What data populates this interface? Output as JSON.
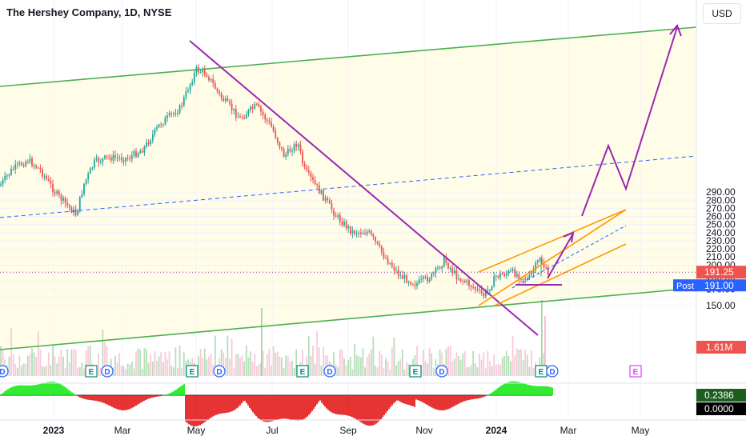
{
  "header": {
    "title": "The Hershey Company, 1D, NYSE",
    "currency": "USD"
  },
  "price_scale": {
    "ticks": [
      "290.00",
      "280.00",
      "270.00",
      "260.00",
      "250.00",
      "240.00",
      "230.00",
      "220.00",
      "210.00",
      "200.00",
      "180.00",
      "170.00",
      "150.00"
    ],
    "last_price_label": "191.25",
    "post_label": "Post",
    "post_price_label": "191.00",
    "volume_label": "1.61M",
    "osc_value_label": "0.2386",
    "osc_zero_label": "0.0000"
  },
  "time_axis": {
    "labels": [
      "2023",
      "Mar",
      "May",
      "Jul",
      "Sep",
      "Nov",
      "2024",
      "Mar",
      "May"
    ]
  },
  "event_markers": [
    {
      "letter": "D",
      "kind": "dividend"
    },
    {
      "letter": "E",
      "kind": "earnings"
    },
    {
      "letter": "D",
      "kind": "dividend"
    },
    {
      "letter": "E",
      "kind": "earnings"
    },
    {
      "letter": "D",
      "kind": "dividend"
    },
    {
      "letter": "E",
      "kind": "earnings"
    },
    {
      "letter": "D",
      "kind": "dividend"
    },
    {
      "letter": "E",
      "kind": "earnings"
    },
    {
      "letter": "D",
      "kind": "dividend"
    },
    {
      "letter": "E",
      "kind": "earnings"
    },
    {
      "letter": "D",
      "kind": "dividend"
    },
    {
      "letter": "E",
      "kind": "earnings-upcoming"
    }
  ],
  "colors": {
    "up": "#26a69a",
    "down": "#ef5350",
    "channel": "#4caf50",
    "trend": "#9c27b0",
    "orange": "#ff9800",
    "midline": "#2962ff",
    "channel_fill": "#fffde7",
    "post": "#2962ff",
    "osc_pos": "#00e600",
    "osc_neg": "#e00000"
  },
  "chart_data": {
    "type": "candlestick",
    "symbol": "HSY",
    "interval": "1D",
    "exchange": "NYSE",
    "ylim": [
      146,
      297
    ],
    "last_price": 191.25,
    "post_price": 191.0,
    "last_volume": "1.61M",
    "ohlc": [
      {
        "month": "2022-12",
        "close": 225
      },
      {
        "month": "2023-01",
        "close": 220
      },
      {
        "month": "2023-02",
        "close": 236
      },
      {
        "month": "2023-03",
        "close": 245
      },
      {
        "month": "2023-04",
        "close": 268
      },
      {
        "month": "2023-05",
        "close": 258
      },
      {
        "month": "2023-06",
        "close": 255
      },
      {
        "month": "2023-07",
        "close": 240
      },
      {
        "month": "2023-08",
        "close": 213
      },
      {
        "month": "2023-09",
        "close": 193
      },
      {
        "month": "2023-10",
        "close": 187
      },
      {
        "month": "2023-11",
        "close": 186
      },
      {
        "month": "2023-12",
        "close": 186
      },
      {
        "month": "2024-01",
        "close": 194
      },
      {
        "month": "2024-02",
        "close": 191
      }
    ],
    "oscillator": {
      "last": 0.2386,
      "zero": 0.0
    }
  }
}
